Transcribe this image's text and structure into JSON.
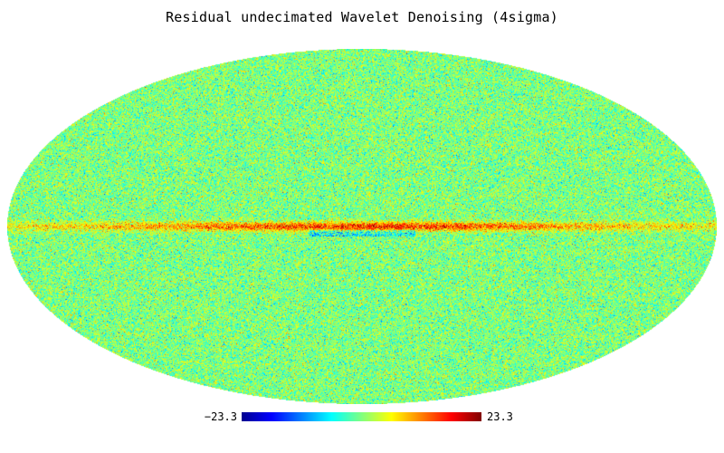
{
  "title": "Residual undecimated Wavelet Denoising (4sigma)",
  "colorbar": {
    "min_label": "−23.3",
    "max_label": "23.3",
    "min_value": -23.3,
    "max_value": 23.3,
    "colormap": "jet"
  },
  "map": {
    "projection": "mollweide",
    "background": "#ffffff",
    "noise_mean_color": "#80ff80"
  }
}
